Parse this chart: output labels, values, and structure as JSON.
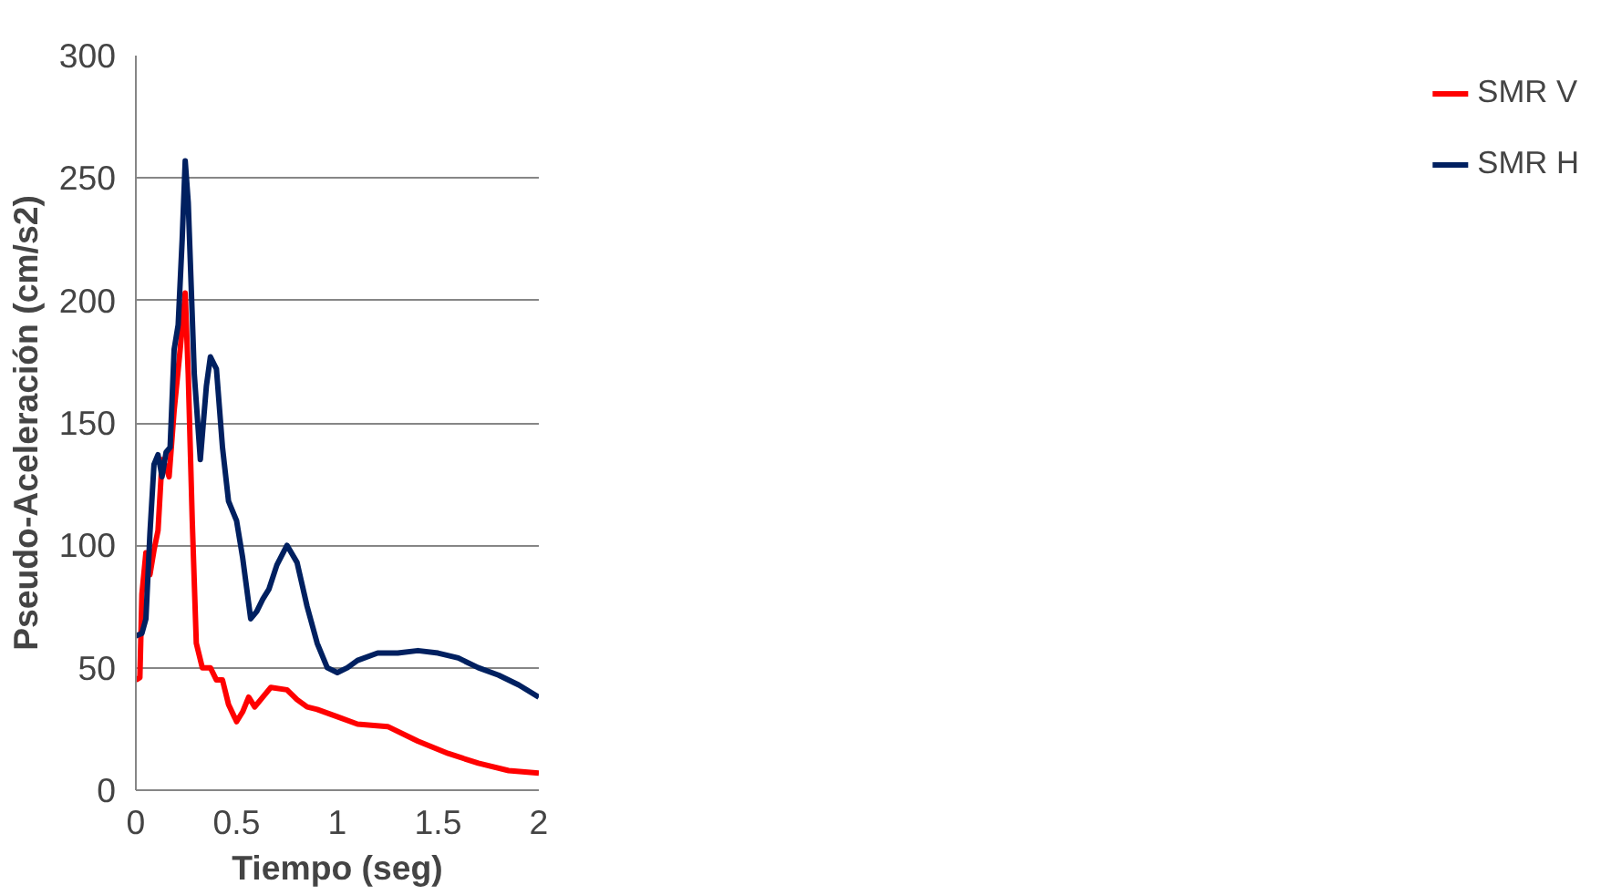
{
  "chart_data": {
    "type": "line",
    "xlabel": "Tiempo (seg)",
    "ylabel": "Pseudo-Aceleración (cm/s2)",
    "xlim": [
      0,
      2
    ],
    "xticks": [
      0,
      0.5,
      1,
      1.5,
      2
    ],
    "ylim": [
      0,
      300
    ],
    "yticks": [
      0,
      50,
      100,
      150,
      200,
      250,
      300
    ],
    "grid": "y",
    "legend": "right",
    "line_style": "solid",
    "series": [
      {
        "name": "SMR V",
        "color": "#ff0000",
        "x": [
          0,
          0.02,
          0.03,
          0.05,
          0.07,
          0.09,
          0.11,
          0.13,
          0.15,
          0.165,
          0.19,
          0.22,
          0.245,
          0.26,
          0.28,
          0.3,
          0.33,
          0.37,
          0.4,
          0.43,
          0.46,
          0.5,
          0.53,
          0.56,
          0.59,
          0.63,
          0.67,
          0.75,
          0.8,
          0.85,
          0.9,
          1.0,
          1.1,
          1.25,
          1.4,
          1.55,
          1.7,
          1.85,
          2.0
        ],
        "values": [
          45,
          46,
          80,
          97,
          88,
          98,
          106,
          135,
          132,
          128,
          155,
          180,
          203,
          170,
          110,
          60,
          50,
          50,
          45,
          45,
          35,
          28,
          32,
          38,
          34,
          38,
          42,
          41,
          37,
          34,
          33,
          30,
          27,
          26,
          20,
          15,
          11,
          8,
          7
        ]
      },
      {
        "name": "SMR H",
        "color": "#002060",
        "x": [
          0,
          0.03,
          0.05,
          0.07,
          0.09,
          0.11,
          0.13,
          0.15,
          0.17,
          0.19,
          0.21,
          0.23,
          0.245,
          0.26,
          0.29,
          0.32,
          0.35,
          0.37,
          0.4,
          0.43,
          0.46,
          0.5,
          0.53,
          0.57,
          0.6,
          0.63,
          0.66,
          0.7,
          0.75,
          0.8,
          0.85,
          0.9,
          0.95,
          1.0,
          1.05,
          1.1,
          1.2,
          1.3,
          1.4,
          1.5,
          1.6,
          1.7,
          1.8,
          1.9,
          2.0
        ],
        "values": [
          63,
          64,
          70,
          105,
          133,
          137,
          128,
          138,
          140,
          180,
          190,
          225,
          257,
          240,
          170,
          135,
          165,
          177,
          172,
          140,
          118,
          110,
          95,
          70,
          73,
          78,
          82,
          92,
          100,
          93,
          75,
          60,
          50,
          48,
          50,
          53,
          56,
          56,
          57,
          56,
          54,
          50,
          47,
          43,
          38
        ]
      }
    ]
  }
}
